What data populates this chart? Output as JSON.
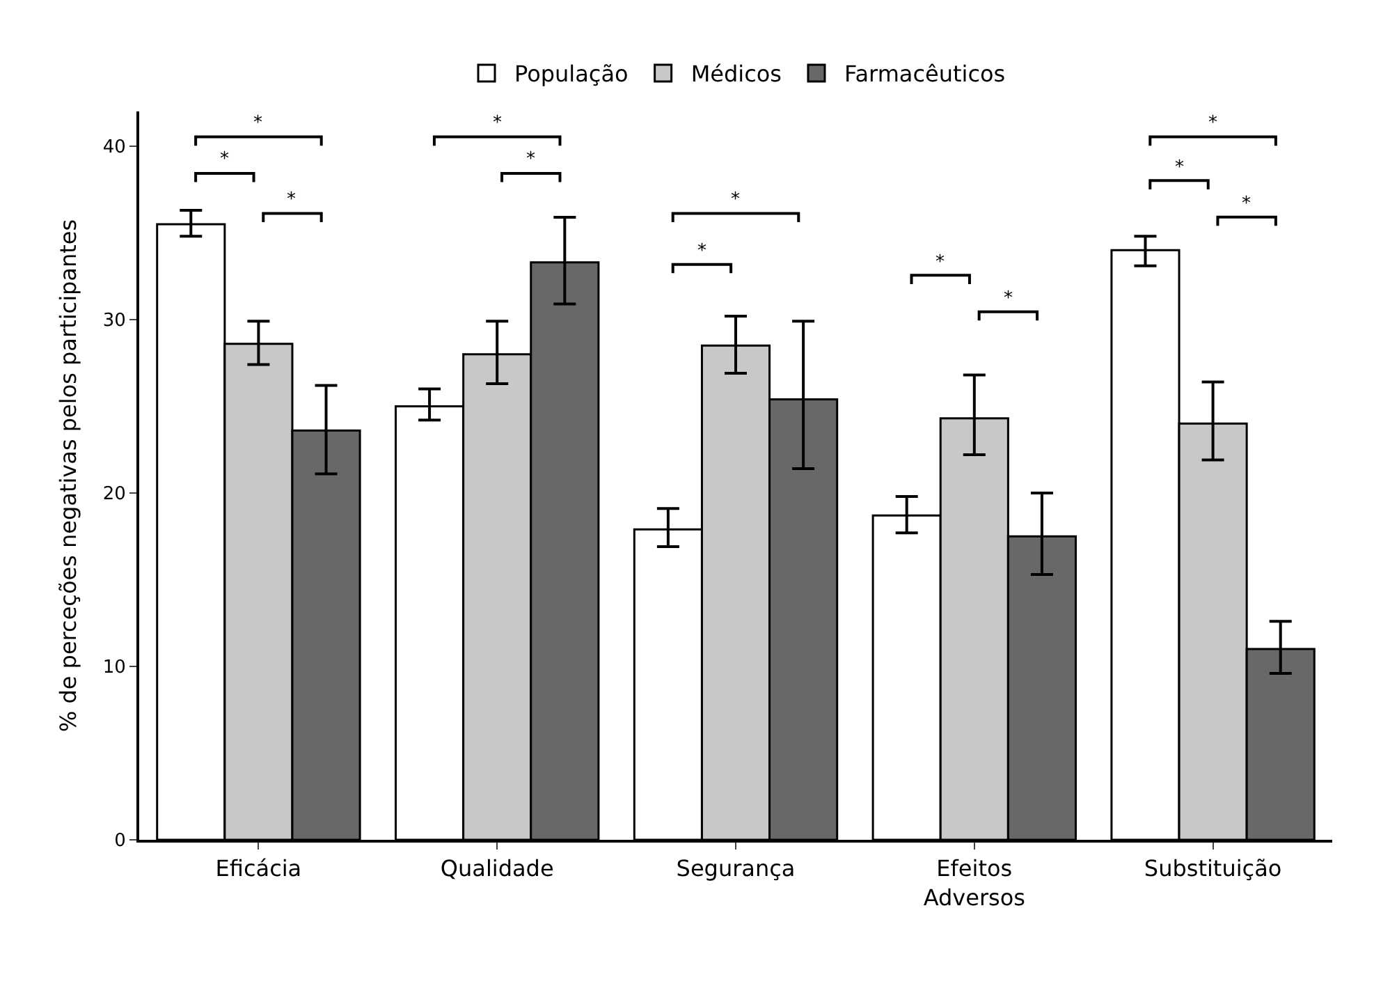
{
  "chart_data": {
    "type": "bar",
    "ylabel": "% de perceções negativas pelos participantes",
    "categories": [
      "Eficácia",
      "Qualidade",
      "Segurança",
      "Efeitos Adversos",
      "Substituição"
    ],
    "series": [
      {
        "name": "População",
        "color": "#ffffff",
        "values": [
          35.5,
          25.0,
          17.9,
          18.7,
          34.0
        ],
        "errors": [
          [
            34.8,
            36.3
          ],
          [
            24.2,
            26.0
          ],
          [
            16.9,
            19.1
          ],
          [
            17.7,
            19.8
          ],
          [
            33.1,
            34.8
          ]
        ]
      },
      {
        "name": "Médicos",
        "color": "#c8c8c8",
        "values": [
          28.6,
          28.0,
          28.5,
          24.3,
          24.0
        ],
        "errors": [
          [
            27.4,
            29.9
          ],
          [
            26.3,
            29.9
          ],
          [
            26.9,
            30.2
          ],
          [
            22.2,
            26.8
          ],
          [
            21.9,
            26.4
          ]
        ]
      },
      {
        "name": "Farmacêuticos",
        "color": "#686868",
        "values": [
          23.6,
          33.3,
          25.4,
          17.5,
          11.0
        ],
        "errors": [
          [
            21.1,
            26.2
          ],
          [
            30.9,
            35.9
          ],
          [
            21.4,
            29.9
          ],
          [
            15.3,
            20.0
          ],
          [
            9.6,
            12.6
          ]
        ]
      }
    ],
    "ylim": [
      0,
      42
    ],
    "yticks": [
      0,
      10,
      20,
      30,
      40
    ],
    "legend": "top",
    "annotations": [
      "*",
      "*",
      "*",
      "*",
      "*",
      "*",
      "*",
      "*",
      "*",
      "*",
      "*",
      "*"
    ]
  }
}
